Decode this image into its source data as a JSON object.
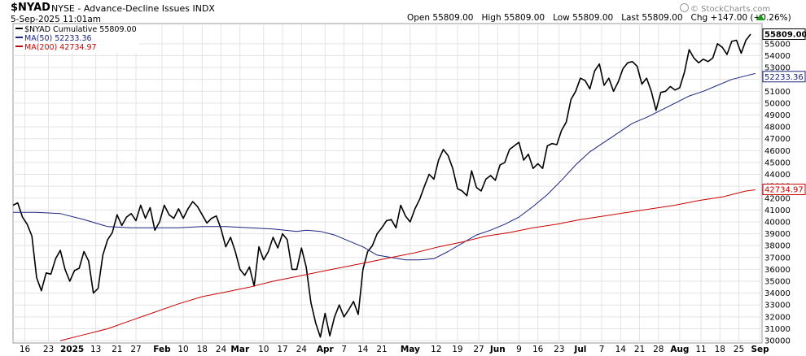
{
  "header": {
    "symbol": "$NYAD",
    "description": "NYSE - Advance-Decline Issues",
    "exchange": "INDX",
    "timestamp": "5-Sep-2025 11:01am",
    "quote": "Open 55809.00   High 55809.00   Low 55809.00   Last 55809.00   Chg +147.00 (+0.26%)",
    "watermark": "© StockCharts.com",
    "watermark_icon": "gear-icon",
    "quote_arrow_icon": "up-arrow-icon"
  },
  "legend": [
    {
      "label": "$NYAD Cumulative 55809.00",
      "color": "#000000"
    },
    {
      "label": "MA(50) 52233.36",
      "color": "#1a237e"
    },
    {
      "label": "MA(200) 42734.97",
      "color": "#cc0000"
    }
  ],
  "price_tags": [
    {
      "label": "55809.00",
      "value": 55809,
      "color": "#000000"
    },
    {
      "label": "52233.36",
      "value": 52233.36,
      "color": "#1a237e"
    },
    {
      "label": "42734.97",
      "value": 42734.97,
      "color": "#cc0000"
    }
  ],
  "chart_data": {
    "type": "line",
    "title": "$NYAD NYSE - Advance-Decline Issues INDX",
    "xlabel": "",
    "ylabel": "",
    "ylim": [
      29800,
      56700
    ],
    "xlim": [
      0,
      156
    ],
    "yticks": [
      30000,
      31000,
      32000,
      33000,
      34000,
      35000,
      36000,
      37000,
      38000,
      39000,
      40000,
      41000,
      42000,
      43000,
      44000,
      45000,
      46000,
      47000,
      48000,
      49000,
      50000,
      51000,
      52000,
      53000,
      54000,
      55000
    ],
    "x_tick_labels": [
      {
        "t": 2.5,
        "label": "16",
        "bold": false
      },
      {
        "t": 7.5,
        "label": "23",
        "bold": false
      },
      {
        "t": 12.5,
        "label": "2025",
        "bold": true
      },
      {
        "t": 17.5,
        "label": "13",
        "bold": false
      },
      {
        "t": 22,
        "label": "21",
        "bold": false
      },
      {
        "t": 26,
        "label": "27",
        "bold": false
      },
      {
        "t": 31.5,
        "label": "Feb",
        "bold": true
      },
      {
        "t": 36,
        "label": "10",
        "bold": false
      },
      {
        "t": 40,
        "label": "18",
        "bold": false
      },
      {
        "t": 44,
        "label": "24",
        "bold": false
      },
      {
        "t": 48,
        "label": "Mar",
        "bold": true
      },
      {
        "t": 53,
        "label": "10",
        "bold": false
      },
      {
        "t": 57,
        "label": "17",
        "bold": false
      },
      {
        "t": 61,
        "label": "24",
        "bold": false
      },
      {
        "t": 66,
        "label": "Apr",
        "bold": true
      },
      {
        "t": 70,
        "label": "7",
        "bold": false
      },
      {
        "t": 74,
        "label": "14",
        "bold": false
      },
      {
        "t": 78,
        "label": "21",
        "bold": false
      },
      {
        "t": 84,
        "label": "May",
        "bold": true
      },
      {
        "t": 89.5,
        "label": "12",
        "bold": false
      },
      {
        "t": 94,
        "label": "19",
        "bold": false
      },
      {
        "t": 98.5,
        "label": "27",
        "bold": false
      },
      {
        "t": 102.5,
        "label": "Jun",
        "bold": true
      },
      {
        "t": 107,
        "label": "9",
        "bold": false
      },
      {
        "t": 111,
        "label": "16",
        "bold": false
      },
      {
        "t": 115.5,
        "label": "23",
        "bold": false
      },
      {
        "t": 120,
        "label": "Jul",
        "bold": true
      },
      {
        "t": 124.5,
        "label": "7",
        "bold": false
      },
      {
        "t": 128.5,
        "label": "14",
        "bold": false
      },
      {
        "t": 132.5,
        "label": "21",
        "bold": false
      },
      {
        "t": 136.5,
        "label": "28",
        "bold": false
      },
      {
        "t": 141,
        "label": "Aug",
        "bold": true
      },
      {
        "t": 145.5,
        "label": "11",
        "bold": false
      },
      {
        "t": 149.5,
        "label": "18",
        "bold": false
      },
      {
        "t": 153.5,
        "label": "25",
        "bold": false
      },
      {
        "t": 158,
        "label": "Sep",
        "bold": true
      }
    ],
    "grid": true,
    "series": [
      {
        "name": "$NYAD Cumulative",
        "color": "#000000",
        "x": [
          0,
          1,
          2,
          3,
          4,
          5,
          6,
          7,
          8,
          9,
          10,
          11,
          12,
          13,
          14,
          15,
          16,
          17,
          18,
          19,
          20,
          21,
          22,
          23,
          24,
          25,
          26,
          27,
          28,
          29,
          30,
          31,
          32,
          33,
          34,
          35,
          36,
          37,
          38,
          39,
          40,
          41,
          42,
          43,
          44,
          45,
          46,
          47,
          48,
          49,
          50,
          51,
          52,
          53,
          54,
          55,
          56,
          57,
          58,
          59,
          60,
          61,
          62,
          63,
          64,
          65,
          66,
          67,
          68,
          69,
          70,
          71,
          72,
          73,
          74,
          75,
          76,
          77,
          78,
          79,
          80,
          81,
          82,
          83,
          84,
          85,
          86,
          87,
          88,
          89,
          90,
          91,
          92,
          93,
          94,
          95,
          96,
          97,
          98,
          99,
          100,
          101,
          102,
          103,
          104,
          105,
          106,
          107,
          108,
          109,
          110,
          111,
          112,
          113,
          114,
          115,
          116,
          117,
          118,
          119,
          120,
          121,
          122,
          123,
          124,
          125,
          126,
          127,
          128,
          129,
          130,
          131,
          132,
          133,
          134,
          135,
          136,
          137,
          138,
          139,
          140,
          141,
          142,
          143,
          144,
          145,
          146,
          147,
          148,
          149,
          150,
          151,
          152,
          153,
          154,
          155,
          156
        ],
        "y": [
          41400,
          41600,
          40400,
          39800,
          38800,
          35300,
          34200,
          35700,
          35600,
          36900,
          37600,
          36000,
          35000,
          35900,
          36100,
          37500,
          36700,
          34000,
          34400,
          37200,
          38500,
          39100,
          40600,
          39700,
          40400,
          40700,
          40100,
          41400,
          40300,
          41200,
          39300,
          40000,
          41400,
          40600,
          40300,
          41100,
          40300,
          41100,
          41700,
          41300,
          40600,
          39900,
          40300,
          40500,
          39400,
          37900,
          38700,
          37500,
          36000,
          35500,
          36200,
          34600,
          37900,
          36800,
          37500,
          38700,
          37800,
          39000,
          38500,
          36000,
          36000,
          37800,
          36200,
          33200,
          31500,
          30300,
          32300,
          30400,
          32000,
          33000,
          32000,
          32600,
          33300,
          32200,
          36000,
          37500,
          38000,
          39000,
          39500,
          40100,
          40200,
          39500,
          41400,
          40500,
          40000,
          41100,
          41900,
          43000,
          44000,
          43600,
          45200,
          46100,
          45600,
          44500,
          42800,
          42600,
          42200,
          44300,
          42900,
          42600,
          43600,
          43900,
          43500,
          44800,
          45000,
          46100,
          46400,
          46700,
          45200,
          45700,
          44500,
          44900,
          44500,
          46400,
          46600,
          46500,
          47700,
          48400,
          50300,
          51000,
          52100,
          51900,
          51200,
          52700,
          53300,
          51500,
          52100,
          51000,
          51800,
          52900,
          53400,
          53500,
          53100,
          51600,
          52100,
          51000,
          49400,
          50900,
          51000,
          51400,
          51100,
          51300,
          52600,
          54500,
          53800,
          53400,
          53700,
          53500,
          53800,
          55000,
          54700,
          54100,
          55200,
          55300,
          54200,
          55300,
          55809
        ]
      },
      {
        "name": "MA(50)",
        "color": "#1a237e",
        "x": [
          0,
          5,
          10,
          15,
          20,
          25,
          30,
          35,
          40,
          45,
          50,
          55,
          60,
          62,
          65,
          68,
          71,
          74,
          77,
          80,
          83,
          86,
          89,
          92,
          95,
          98,
          101,
          104,
          107,
          110,
          113,
          116,
          119,
          122,
          125,
          128,
          131,
          134,
          137,
          140,
          143,
          146,
          149,
          152,
          155,
          157
        ],
        "y": [
          40800,
          40800,
          40700,
          40200,
          39600,
          39500,
          39500,
          39500,
          39600,
          39600,
          39500,
          39400,
          39200,
          39300,
          39200,
          38900,
          38400,
          37900,
          37200,
          37000,
          36800,
          36800,
          36900,
          37500,
          38200,
          38900,
          39300,
          39800,
          40400,
          41300,
          42300,
          43500,
          44800,
          45900,
          46700,
          47500,
          48300,
          48800,
          49400,
          50000,
          50600,
          51000,
          51500,
          52000,
          52300,
          52500
        ]
      },
      {
        "name": "MA(200)",
        "color": "#cc0000",
        "x": [
          10,
          15,
          20,
          25,
          30,
          35,
          40,
          45,
          50,
          55,
          60,
          65,
          70,
          75,
          80,
          85,
          90,
          95,
          100,
          105,
          110,
          115,
          120,
          125,
          130,
          135,
          140,
          145,
          150,
          155,
          157
        ],
        "y": [
          30000,
          30500,
          31000,
          31700,
          32400,
          33100,
          33700,
          34100,
          34500,
          35000,
          35400,
          35800,
          36200,
          36600,
          37000,
          37400,
          37900,
          38300,
          38800,
          39100,
          39500,
          39800,
          40200,
          40500,
          40800,
          41100,
          41400,
          41800,
          42100,
          42600,
          42700
        ]
      }
    ]
  }
}
